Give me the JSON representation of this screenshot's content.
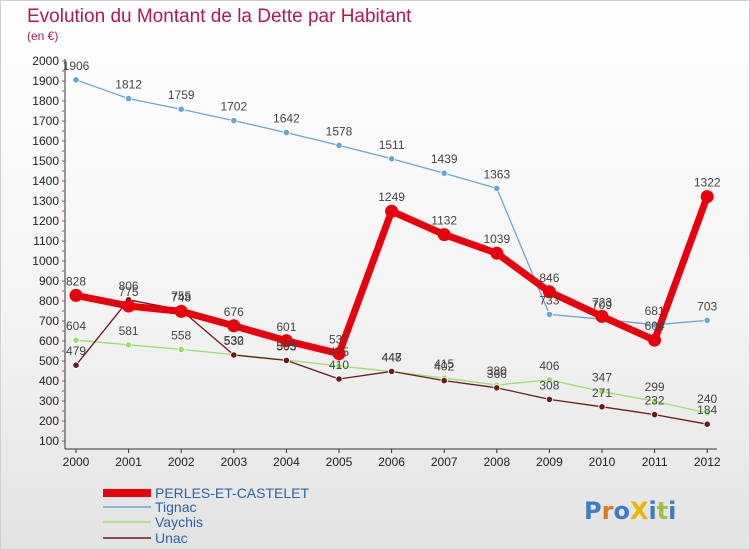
{
  "header": {
    "title": "Evolution du Montant de la Dette par Habitant",
    "unit": "(en €)"
  },
  "logo": {
    "text": "ProXiti"
  },
  "chart_data": {
    "type": "line",
    "x": [
      "2000",
      "2001",
      "2002",
      "2003",
      "2004",
      "2005",
      "2006",
      "2007",
      "2008",
      "2009",
      "2010",
      "2011",
      "2012"
    ],
    "ylim": [
      100,
      2000
    ],
    "yticks": [
      100,
      200,
      300,
      400,
      500,
      600,
      700,
      800,
      900,
      1000,
      1100,
      1200,
      1300,
      1400,
      1500,
      1600,
      1700,
      1800,
      1900,
      2000
    ],
    "grid": false,
    "legend_position": "bottom-left",
    "series": [
      {
        "name": "PERLES-ET-CASTELET",
        "color": "#e8000b",
        "highlight": true,
        "values": [
          828,
          775,
          748,
          676,
          601,
          537,
          1249,
          1132,
          1039,
          846,
          723,
          604,
          1322
        ],
        "labels": [
          "828",
          "775",
          "748",
          "676",
          "601",
          "537",
          "1249",
          "1132",
          "1039",
          "846",
          "723",
          "604",
          "1322"
        ]
      },
      {
        "name": "Tignac",
        "color": "#6aa6d0",
        "highlight": false,
        "values": [
          1906,
          1812,
          1759,
          1702,
          1642,
          1578,
          1511,
          1439,
          1363,
          733,
          709,
          681,
          703
        ],
        "labels": [
          "1906",
          "1812",
          "1759",
          "1702",
          "1642",
          "1578",
          "1511",
          "1439",
          "1363",
          "733",
          "709",
          "681",
          "703"
        ]
      },
      {
        "name": "Vaychis",
        "color": "#99e06a",
        "highlight": false,
        "values": [
          604,
          581,
          558,
          532,
          505,
          475,
          447,
          415,
          380,
          406,
          347,
          299,
          240
        ],
        "labels": [
          "604",
          "581",
          "558",
          "532",
          "505",
          "4?5",
          "447",
          "415",
          "380",
          "406",
          "347",
          "299",
          "240"
        ]
      },
      {
        "name": "Unac",
        "color": "#6b1a1a",
        "highlight": false,
        "values": [
          479,
          806,
          755,
          530,
          503,
          410,
          448,
          402,
          366,
          308,
          271,
          232,
          184
        ],
        "labels": [
          "479",
          "806",
          "755",
          "530",
          "503",
          "410",
          "448",
          "402",
          "366",
          "308",
          "271",
          "232",
          "184"
        ]
      }
    ]
  }
}
